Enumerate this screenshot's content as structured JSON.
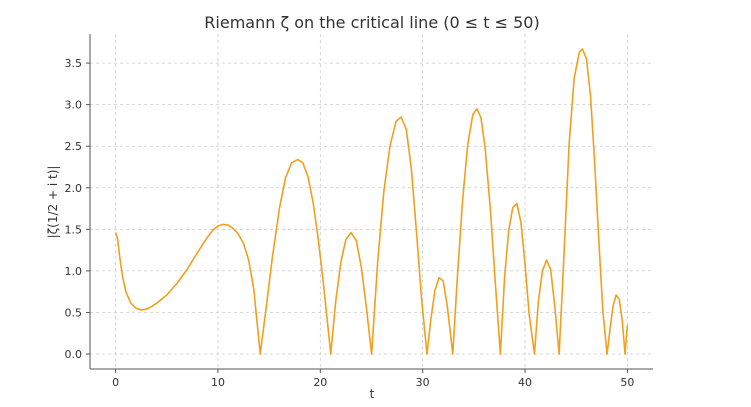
{
  "chart_data": {
    "type": "line",
    "title": "Riemann ζ on the critical line (0 ≤ t ≤ 50)",
    "xlabel": "t",
    "ylabel": "|ζ(1/2 + i t)|",
    "xlim": [
      -2.5,
      52.5
    ],
    "ylim": [
      -0.18,
      3.85
    ],
    "xticks": [
      0,
      10,
      20,
      30,
      40,
      50
    ],
    "xtick_labels": [
      "0",
      "10",
      "20",
      "30",
      "40",
      "50"
    ],
    "yticks": [
      0.0,
      0.5,
      1.0,
      1.5,
      2.0,
      2.5,
      3.0,
      3.5
    ],
    "ytick_labels": [
      "0.0",
      "0.5",
      "1.0",
      "1.5",
      "2.0",
      "2.5",
      "3.0",
      "3.5"
    ],
    "grid": true,
    "color": "#f0a01c",
    "series": [
      {
        "values": [
          [
            0,
            1.46
          ],
          [
            0.2,
            1.38
          ],
          [
            0.4,
            1.17
          ],
          [
            0.7,
            0.92
          ],
          [
            1.0,
            0.75
          ],
          [
            1.5,
            0.61
          ],
          [
            2.0,
            0.55
          ],
          [
            2.5,
            0.53
          ],
          [
            3.0,
            0.54
          ],
          [
            3.5,
            0.57
          ],
          [
            4.0,
            0.61
          ],
          [
            5.0,
            0.71
          ],
          [
            6.0,
            0.85
          ],
          [
            7.0,
            1.02
          ],
          [
            8.0,
            1.22
          ],
          [
            9.0,
            1.41
          ],
          [
            9.5,
            1.49
          ],
          [
            10.0,
            1.54
          ],
          [
            10.5,
            1.56
          ],
          [
            11.0,
            1.55
          ],
          [
            11.5,
            1.51
          ],
          [
            12.0,
            1.44
          ],
          [
            12.5,
            1.33
          ],
          [
            13.0,
            1.13
          ],
          [
            13.5,
            0.78
          ],
          [
            14.13,
            0.0
          ],
          [
            14.7,
            0.55
          ],
          [
            15.3,
            1.15
          ],
          [
            16.0,
            1.75
          ],
          [
            16.6,
            2.12
          ],
          [
            17.2,
            2.3
          ],
          [
            17.8,
            2.34
          ],
          [
            18.3,
            2.3
          ],
          [
            18.8,
            2.13
          ],
          [
            19.3,
            1.82
          ],
          [
            19.8,
            1.38
          ],
          [
            20.3,
            0.85
          ],
          [
            21.02,
            0.0
          ],
          [
            21.5,
            0.63
          ],
          [
            22.0,
            1.1
          ],
          [
            22.5,
            1.38
          ],
          [
            23.0,
            1.46
          ],
          [
            23.5,
            1.37
          ],
          [
            24.0,
            1.05
          ],
          [
            24.5,
            0.56
          ],
          [
            25.01,
            0.0
          ],
          [
            25.6,
            1.1
          ],
          [
            26.2,
            1.95
          ],
          [
            26.8,
            2.5
          ],
          [
            27.4,
            2.8
          ],
          [
            27.9,
            2.85
          ],
          [
            28.4,
            2.7
          ],
          [
            28.9,
            2.22
          ],
          [
            29.4,
            1.46
          ],
          [
            29.9,
            0.65
          ],
          [
            30.42,
            0.0
          ],
          [
            30.8,
            0.42
          ],
          [
            31.2,
            0.77
          ],
          [
            31.6,
            0.92
          ],
          [
            32.0,
            0.88
          ],
          [
            32.4,
            0.58
          ],
          [
            32.94,
            0.0
          ],
          [
            33.4,
            0.95
          ],
          [
            33.9,
            1.85
          ],
          [
            34.4,
            2.52
          ],
          [
            34.9,
            2.88
          ],
          [
            35.3,
            2.95
          ],
          [
            35.7,
            2.84
          ],
          [
            36.1,
            2.48
          ],
          [
            36.6,
            1.76
          ],
          [
            37.1,
            0.85
          ],
          [
            37.59,
            0.0
          ],
          [
            38.0,
            0.92
          ],
          [
            38.4,
            1.48
          ],
          [
            38.8,
            1.76
          ],
          [
            39.2,
            1.81
          ],
          [
            39.6,
            1.58
          ],
          [
            40.0,
            1.08
          ],
          [
            40.4,
            0.48
          ],
          [
            40.92,
            0.0
          ],
          [
            41.3,
            0.63
          ],
          [
            41.7,
            1.0
          ],
          [
            42.1,
            1.13
          ],
          [
            42.5,
            1.02
          ],
          [
            42.9,
            0.58
          ],
          [
            43.33,
            0.0
          ],
          [
            43.8,
            1.18
          ],
          [
            44.3,
            2.52
          ],
          [
            44.8,
            3.32
          ],
          [
            45.3,
            3.63
          ],
          [
            45.6,
            3.67
          ],
          [
            46.0,
            3.55
          ],
          [
            46.4,
            3.1
          ],
          [
            46.8,
            2.3
          ],
          [
            47.2,
            1.38
          ],
          [
            47.6,
            0.52
          ],
          [
            48.01,
            0.0
          ],
          [
            48.3,
            0.3
          ],
          [
            48.6,
            0.58
          ],
          [
            48.9,
            0.71
          ],
          [
            49.2,
            0.66
          ],
          [
            49.5,
            0.4
          ],
          [
            49.77,
            0.0
          ],
          [
            50.0,
            0.35
          ]
        ]
      }
    ]
  }
}
